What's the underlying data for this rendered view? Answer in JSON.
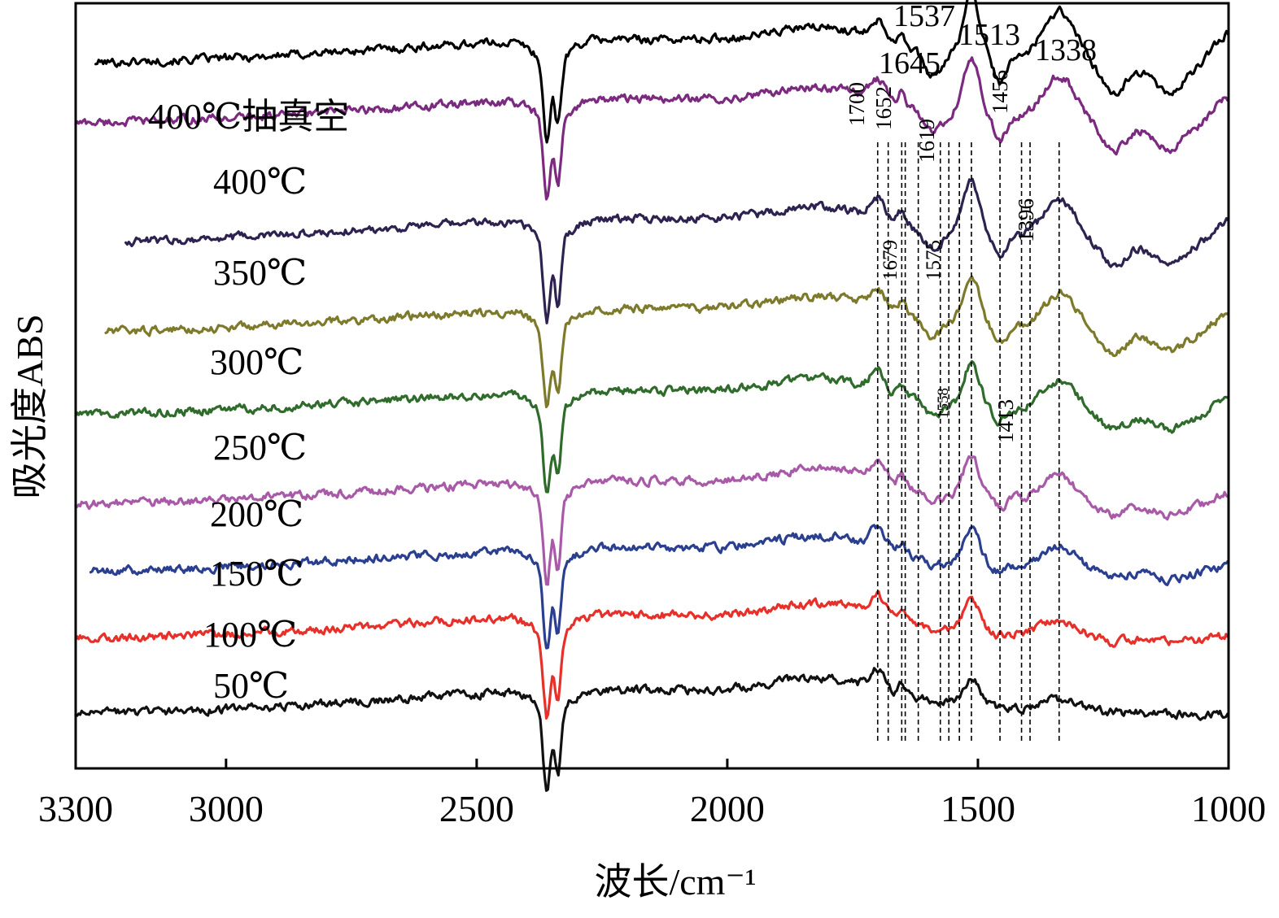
{
  "chart_data": {
    "type": "line",
    "title": "",
    "xlabel": "波长/cm⁻¹",
    "ylabel": "吸光度ABS",
    "xlim": [
      3300,
      1000
    ],
    "x_ticks": [
      3300,
      3000,
      2500,
      2000,
      1500,
      1000
    ],
    "grid": false,
    "series": [
      {
        "name": "400℃抽真空",
        "color": "#000000",
        "offset": 9.4,
        "start": 3260,
        "tail": 0.5
      },
      {
        "name": "400℃",
        "color": "#7b2a80",
        "offset": 8.6,
        "start": 3300,
        "tail": 0.6
      },
      {
        "name": "350℃",
        "color": "#2e2350",
        "offset": 7.0,
        "start": 3200,
        "tail": 0.7
      },
      {
        "name": "300℃",
        "color": "#7d7a2c",
        "offset": 5.8,
        "start": 3240,
        "tail": 0.9
      },
      {
        "name": "250℃",
        "color": "#2f6b2b",
        "offset": 4.7,
        "start": 3300,
        "tail": 0.6
      },
      {
        "name": "200℃",
        "color": "#a85aa8",
        "offset": 3.5,
        "start": 3300,
        "tail": 0.4
      },
      {
        "name": "150℃",
        "color": "#2b3f91",
        "offset": 2.6,
        "start": 3270,
        "tail": 0.5
      },
      {
        "name": "100℃",
        "color": "#e8302a",
        "offset": 1.7,
        "start": 3300,
        "tail": 0.1
      },
      {
        "name": "50℃",
        "color": "#111111",
        "offset": 0.7,
        "start": 3300,
        "tail": 0.1
      }
    ],
    "peak_lines": [
      1700,
      1679,
      1652,
      1645,
      1619,
      1575,
      1558,
      1537,
      1513,
      1456,
      1413,
      1396,
      1338
    ],
    "peak_annotations": [
      {
        "text": "1537"
      },
      {
        "text": "1645"
      },
      {
        "text": "1513"
      },
      {
        "text": "1338"
      },
      {
        "text": "1700"
      },
      {
        "text": "1652"
      },
      {
        "text": "1619"
      },
      {
        "text": "1456"
      },
      {
        "text": "1679"
      },
      {
        "text": "1575"
      },
      {
        "text": "1396"
      },
      {
        "text": "1558"
      },
      {
        "text": "1413"
      }
    ]
  }
}
